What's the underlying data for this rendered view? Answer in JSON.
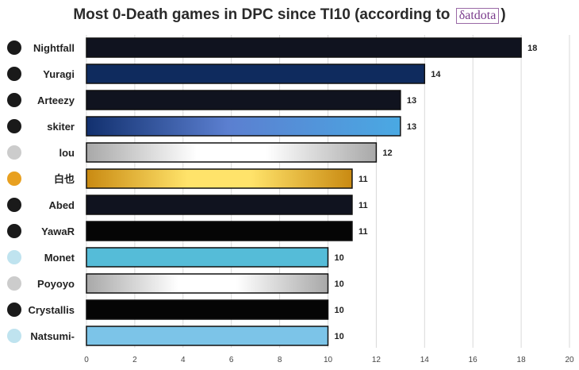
{
  "chart_data": {
    "type": "bar",
    "orientation": "horizontal",
    "title_prefix": "Most 0-Death games in DPC since TI10 (according to",
    "title_brand": "δatdota",
    "title_suffix": ")",
    "categories": [
      "Nightfall",
      "Yuragi",
      "Arteezy",
      "skiter",
      "lou",
      "白也",
      "Abed",
      "YawaR",
      "Monet",
      "Poyoyo",
      "Crystallis",
      "Natsumi-"
    ],
    "values": [
      18,
      14,
      13,
      13,
      12,
      11,
      11,
      11,
      10,
      10,
      10,
      10
    ],
    "team_icons": [
      "eg-logo-icon",
      "og-logo-icon",
      "eg-logo-icon",
      "tundra-logo-icon",
      "vp-logo-icon",
      "mad-kings-logo-icon",
      "eg-logo-icon",
      "qc-logo-icon",
      "aster-logo-icon",
      "vici-logo-icon",
      "secret-logo-icon",
      "aster-logo-icon"
    ],
    "bar_colors": [
      [
        "#10131f",
        "#10131f"
      ],
      [
        "#0f2b5e",
        "#0f2b5e"
      ],
      [
        "#10131f",
        "#10131f"
      ],
      [
        "#12306e",
        "#4aa9e3"
      ],
      [
        "#a8a8a8",
        "#ffffff"
      ],
      [
        "#c98a12",
        "#ffe36a"
      ],
      [
        "#10131f",
        "#10131f"
      ],
      [
        "#050505",
        "#050505"
      ],
      [
        "#55bcd8",
        "#55bcd8"
      ],
      [
        "#a8a8a8",
        "#ffffff"
      ],
      [
        "#050505",
        "#050505"
      ],
      [
        "#7cc4e8",
        "#7cc4e8"
      ]
    ],
    "xlim": [
      0,
      20
    ],
    "xticks": [
      0,
      2,
      4,
      6,
      8,
      10,
      12,
      14,
      16,
      18,
      20
    ],
    "grid": true,
    "xlabel": "",
    "ylabel": ""
  }
}
